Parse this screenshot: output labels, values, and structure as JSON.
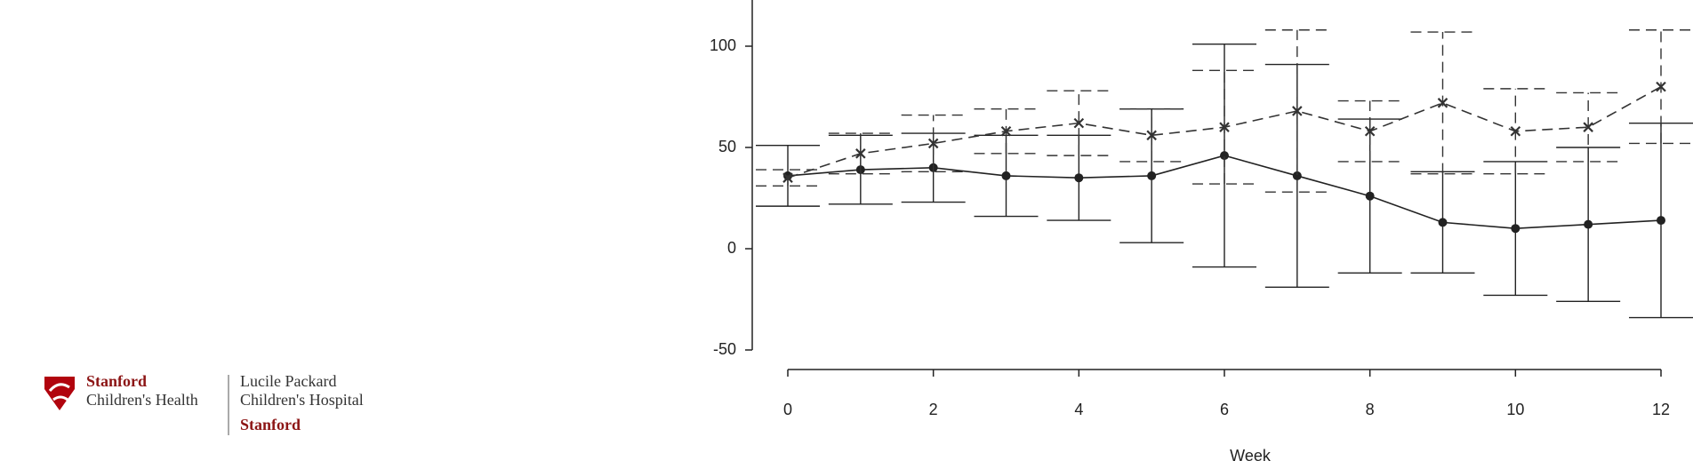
{
  "chart_data": {
    "type": "line",
    "xlabel": "Week",
    "x": [
      0,
      1,
      2,
      3,
      4,
      5,
      6,
      7,
      8,
      9,
      10,
      11,
      12
    ],
    "xlim": [
      0,
      12
    ],
    "xticks": [
      0,
      2,
      4,
      6,
      8,
      10,
      12
    ],
    "ylim": [
      -50,
      100
    ],
    "yticks": [
      -50,
      0,
      50,
      100
    ],
    "series": [
      {
        "color": "#222222",
        "dash": false,
        "marker": "circle",
        "values": [
          36,
          39,
          40,
          36,
          35,
          36,
          46,
          36,
          26,
          13,
          10,
          12,
          14
        ],
        "errors": [
          15,
          17,
          17,
          20,
          21,
          33,
          55,
          55,
          38,
          25,
          33,
          38,
          48
        ]
      },
      {
        "color": "#333333",
        "dash": true,
        "marker": "x",
        "values": [
          35,
          47,
          52,
          58,
          62,
          56,
          60,
          68,
          58,
          72,
          58,
          60,
          80
        ],
        "errors": [
          4,
          10,
          14,
          11,
          16,
          13,
          28,
          40,
          15,
          35,
          21,
          17,
          28
        ]
      }
    ]
  },
  "logo": {
    "brand_1": "Stanford",
    "brand_2": "Children's Health",
    "hospital_1": "Lucile Packard",
    "hospital_2": "Children's Hospital",
    "hospital_3": "Stanford"
  }
}
